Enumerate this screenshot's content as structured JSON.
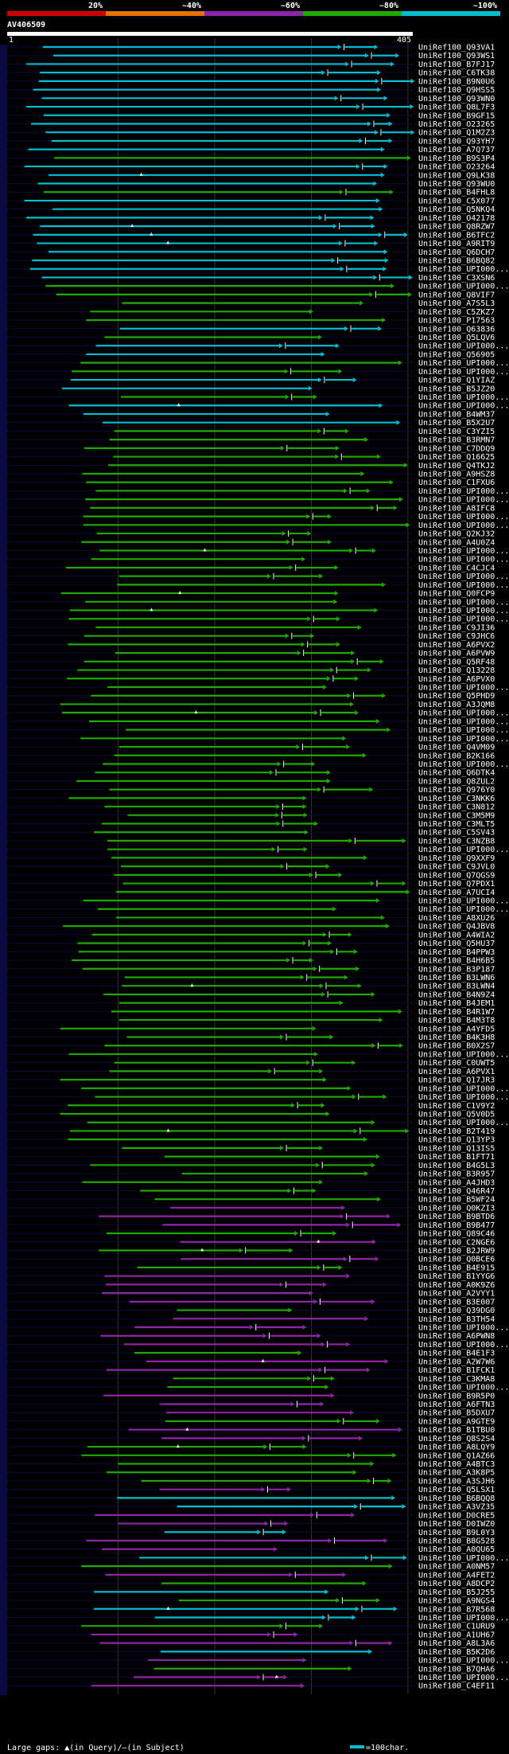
{
  "colors": {
    "c20": "#cc0000",
    "c40": "#e67300",
    "c60": "#8e24aa",
    "c80": "#1faa00",
    "c100": "#00bcd4",
    "bg": "#000000",
    "axis": "#ffffff",
    "query_strip": "#0a0a40"
  },
  "chart_data": {
    "type": "alignment",
    "query_name": "AV406509",
    "query_length": 405,
    "scale_start_label": "1",
    "scale_end_label": "405",
    "bins": [
      {
        "label": "20%",
        "color": "#cc0000"
      },
      {
        "label": "~40%",
        "color": "#e67300"
      },
      {
        "label": "~60%",
        "color": "#8e24aa"
      },
      {
        "label": "~80%",
        "color": "#1faa00"
      },
      {
        "label": "~100%",
        "color": "#00bcd4"
      }
    ],
    "subjects": [
      "UniRef100_Q93VA1",
      "UniRef100_Q93WS1",
      "UniRef100_B7FJ17",
      "UniRef100_C6TK38",
      "UniRef100_B9N0U6",
      "UniRef100_Q9HSS5",
      "UniRef100_Q93WN0",
      "UniRef100_Q8L7F3",
      "UniRef100_B9GF15",
      "UniRef100_O23265",
      "UniRef100_Q1M2Z3",
      "UniRef100_Q93YH7",
      "UniRef100_A7Q737",
      "UniRef100_B9S3P4",
      "UniRef100_O23264",
      "UniRef100_Q9LK38",
      "UniRef100_Q93WU0",
      "UniRef100_B4FHL8",
      "UniRef100_C5X077",
      "UniRef100_Q5NKQ4",
      "UniRef100_O42178",
      "UniRef100_Q8RZW7",
      "UniRef100_B6TFC2",
      "UniRef100_A9RIT9",
      "UniRef100_Q6DCH7",
      "UniRef100_B6BQ82",
      "UniRef100_UPI000...",
      "UniRef100_C3XSN6",
      "UniRef100_UPI000...",
      "UniRef100_Q8VIF7",
      "UniRef100_A7S5L3",
      "UniRef100_C5ZKZ7",
      "UniRef100_P17563",
      "UniRef100_Q63836",
      "UniRef100_Q5LQV6",
      "UniRef100_UPI000...",
      "UniRef100_Q56905",
      "UniRef100_UPI000...",
      "UniRef100_UPI000...",
      "UniRef100_Q1YIAZ",
      "UniRef100_B5JZ20",
      "UniRef100_UPI000...",
      "UniRef100_UPI000...",
      "UniRef100_B4WM37",
      "UniRef100_B5X2U7",
      "UniRef100_C3YZI5",
      "UniRef100_B3RMN7",
      "UniRef100_C7DDQ9",
      "UniRef100_Q16625",
      "UniRef100_Q4TKJ2",
      "UniRef100_A9HSZ8",
      "UniRef100_C1FXU6",
      "UniRef100_UPI000...",
      "UniRef100_UPI000...",
      "UniRef100_A8IFC8",
      "UniRef100_UPI000...",
      "UniRef100_UPI000...",
      "UniRef100_Q2KJ32",
      "UniRef100_A4U0Z4",
      "UniRef100_UPI000...",
      "UniRef100_UPI000...",
      "UniRef100_C4CJC4",
      "UniRef100_UPI000...",
      "UniRef100_UPI000...",
      "UniRef100_Q0FCP9",
      "UniRef100_UPI000...",
      "UniRef100_UPI000...",
      "UniRef100_UPI000...",
      "UniRef100_C9JI36",
      "UniRef100_C9JHC6",
      "UniRef100_A6PVX2",
      "UniRef100_A6PVW9",
      "UniRef100_Q5RF48",
      "UniRef100_Q13228",
      "UniRef100_A6PVX0",
      "UniRef100_UPI000...",
      "UniRef100_Q5PHD9",
      "UniRef100_A3JQM8",
      "UniRef100_UPI000...",
      "UniRef100_UPI000...",
      "UniRef100_UPI000...",
      "UniRef100_UPI000...",
      "UniRef100_Q4VM09",
      "UniRef100_B2K166",
      "UniRef100_UPI000...",
      "UniRef100_Q6DTK4",
      "UniRef100_Q8ZUL2",
      "UniRef100_Q976Y0",
      "UniRef100_C3NKK6",
      "UniRef100_C3N812",
      "UniRef100_C3M5M9",
      "UniRef100_C3MLT5",
      "UniRef100_C5SV43",
      "UniRef100_C3NZB8",
      "UniRef100_UPI000...",
      "UniRef100_Q9XXF9",
      "UniRef100_C9JVL0",
      "UniRef100_Q7QGS9",
      "UniRef100_Q7PDX1",
      "UniRef100_A7UCI4",
      "UniRef100_UPI000...",
      "UniRef100_UPI000...",
      "UniRef100_A8XU26",
      "UniRef100_Q4JBV8",
      "UniRef100_A4WIA2",
      "UniRef100_Q5HU37",
      "UniRef100_B4PPW3",
      "UniRef100_B4H6B5",
      "UniRef100_B3P187",
      "UniRef100_B3LWN6",
      "UniRef100_B3LWN4",
      "UniRef100_B4N9Z4",
      "UniRef100_B4JEM1",
      "UniRef100_B4R1W7",
      "UniRef100_B4M3T8",
      "UniRef100_A4YFD5",
      "UniRef100_B4K3H8",
      "UniRef100_B0X2S7",
      "UniRef100_UPI000...",
      "UniRef100_C0UWT5",
      "UniRef100_A6PVX1",
      "UniRef100_Q17JR3",
      "UniRef100_UPI000...",
      "UniRef100_UPI000...",
      "UniRef100_C1V9Y2",
      "UniRef100_Q5V0D5",
      "UniRef100_UPI000...",
      "UniRef100_B2T419",
      "UniRef100_Q13YP3",
      "UniRef100_Q13IS5",
      "UniRef100_B1FT71",
      "UniRef100_B4G5L3",
      "UniRef100_B3R957",
      "UniRef100_A4JHD3",
      "UniRef100_Q46R47",
      "UniRef100_B5WF24",
      "UniRef100_Q0KZI3",
      "UniRef100_B9BTD6",
      "UniRef100_B9B477",
      "UniRef100_Q89C46",
      "UniRef100_C2NGE6",
      "UniRef100_B2JRW9",
      "UniRef100_Q0BCE6",
      "UniRef100_B4E915",
      "UniRef100_B1YYG6",
      "UniRef100_A0K9Z6",
      "UniRef100_A2VYY1",
      "UniRef100_B3E007",
      "UniRef100_Q39DG0",
      "UniRef100_B3TH54",
      "UniRef100_UPI000...",
      "UniRef100_A6PWN8",
      "UniRef100_UPI000...",
      "UniRef100_B4E1F3",
      "UniRef100_A2W7W6",
      "UniRef100_B1FCK1",
      "UniRef100_C3KMA8",
      "UniRef100_UPI000...",
      "UniRef100_B9R5P0",
      "UniRef100_A6FTN3",
      "UniRef100_B5DXU7",
      "UniRef100_A9GTE9",
      "UniRef100_B1TBU0",
      "UniRef100_Q8S2S4",
      "UniRef100_A8LQY9",
      "UniRef100_Q1AZ66",
      "UniRef100_A4BTC3",
      "UniRef100_A3K8P5",
      "UniRef100_A3SJH6",
      "UniRef100_Q5LSX1",
      "UniRef100_B6BQQ8",
      "UniRef100_A3VZ35",
      "UniRef100_D0CRE5",
      "UniRef100_D0IWZ0",
      "UniRef100_B9L0Y3",
      "UniRef100_B8G528",
      "UniRef100_A0QU65",
      "UniRef100_UPI000...",
      "UniRef100_A0NM57",
      "UniRef100_A4FET2",
      "UniRef100_A8DCP2",
      "UniRef100_B5J255",
      "UniRef100_A9NGS4",
      "UniRef100_B7R568",
      "UniRef100_UPI000...",
      "UniRef100_C1URU9",
      "UniRef100_A1UH67",
      "UniRef100_A8L3A6",
      "UniRef100_B5K2D6",
      "UniRef100_UPI000...",
      "UniRef100_B7QHA6",
      "UniRef100_UPI000...",
      "UniRef100_C4EF11"
    ],
    "legend_left": "Large gaps: ▲(in Query)/—(in Subject)",
    "legend_right": "=100char."
  }
}
